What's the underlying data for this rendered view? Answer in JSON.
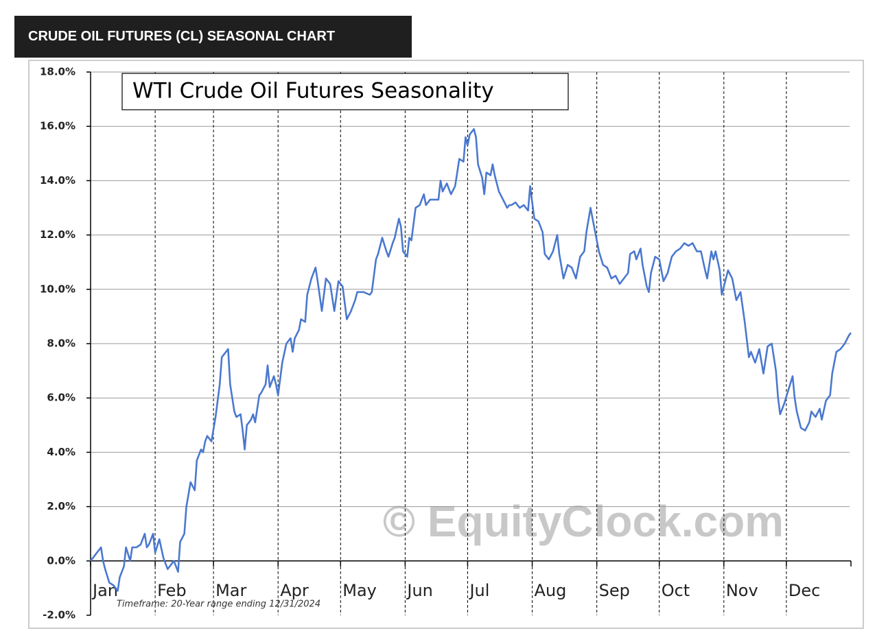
{
  "header": {
    "title": "CRUDE OIL FUTURES (CL) SEASONAL CHART"
  },
  "chart_data": {
    "type": "line",
    "title": "WTI Crude Oil Futures Seasonality",
    "annotations": [
      "Timeframe:  20-Year range ending 12/31/2024",
      "© EquityClock.com"
    ],
    "x": [
      1,
      4,
      6,
      7,
      8,
      10,
      12,
      14,
      15,
      17,
      18,
      20,
      21,
      23,
      25,
      27,
      28,
      29,
      31,
      32,
      34,
      36,
      38,
      41,
      43,
      44,
      46,
      47,
      49,
      51,
      52,
      54,
      55,
      56,
      57,
      59,
      61,
      63,
      64,
      66,
      67,
      68,
      70,
      71,
      73,
      74,
      75,
      76,
      78,
      79,
      80,
      82,
      83,
      85,
      86,
      87,
      89,
      90,
      91,
      93,
      95,
      97,
      98,
      99,
      101,
      102,
      104,
      105,
      107,
      109,
      110,
      112,
      114,
      116,
      118,
      120,
      122,
      124,
      126,
      128,
      129,
      132,
      135,
      136,
      138,
      139,
      141,
      143,
      144,
      146,
      147,
      149,
      150,
      151,
      153,
      154,
      155,
      157,
      159,
      161,
      162,
      164,
      166,
      168,
      169,
      170,
      172,
      174,
      176,
      177,
      178,
      180,
      181,
      182,
      183,
      185,
      186,
      187,
      189,
      190,
      191,
      193,
      194,
      195,
      197,
      199,
      201,
      202,
      203,
      205,
      207,
      209,
      211,
      212,
      214,
      216,
      218,
      219,
      221,
      223,
      225,
      226,
      228,
      230,
      232,
      234,
      236,
      238,
      239,
      241,
      243,
      245,
      247,
      249,
      251,
      253,
      255,
      257,
      259,
      260,
      262,
      263,
      265,
      266,
      268,
      269,
      270,
      272,
      274,
      276,
      278,
      280,
      282,
      284,
      286,
      288,
      290,
      292,
      294,
      296,
      297,
      299,
      300,
      301,
      303,
      304,
      305,
      307,
      309,
      311,
      313,
      315,
      317,
      318,
      320,
      322,
      324,
      326,
      328,
      330,
      331,
      332,
      334,
      336,
      338,
      339,
      340,
      342,
      344,
      346,
      347,
      349,
      351,
      352,
      354,
      356,
      357,
      359,
      361,
      363,
      365,
      366
    ],
    "series": [
      {
        "color": "#4a78cf",
        "values": [
          0,
          0.3,
          0.5,
          0,
          -0.3,
          -0.8,
          -0.9,
          -1.1,
          -0.6,
          -0.2,
          0.5,
          0,
          0.5,
          0.5,
          0.6,
          1.0,
          0.5,
          0.6,
          1.0,
          0.3,
          0.8,
          0.1,
          -0.3,
          0,
          -0.4,
          0.7,
          1.0,
          2.0,
          2.9,
          2.6,
          3.7,
          4.1,
          4.0,
          4.4,
          4.6,
          4.4,
          5.3,
          6.5,
          7.5,
          7.7,
          7.8,
          6.5,
          5.5,
          5.3,
          5.4,
          4.8,
          4.1,
          5.0,
          5.2,
          5.4,
          5.1,
          6.1,
          6.2,
          6.5,
          7.2,
          6.4,
          6.8,
          6.5,
          6.1,
          7.3,
          8.0,
          8.2,
          7.7,
          8.2,
          8.5,
          8.9,
          8.8,
          9.8,
          10.4,
          10.8,
          10.3,
          9.2,
          10.4,
          10.2,
          9.2,
          10.3,
          10.1,
          8.9,
          9.2,
          9.6,
          9.9,
          9.9,
          9.8,
          9.9,
          11.1,
          11.3,
          11.9,
          11.4,
          11.2,
          11.7,
          11.9,
          12.6,
          12.3,
          11.4,
          11.2,
          11.9,
          11.8,
          13.0,
          13.1,
          13.5,
          13.1,
          13.3,
          13.3,
          13.3,
          14.0,
          13.6,
          13.9,
          13.5,
          13.8,
          14.3,
          14.8,
          14.7,
          15.6,
          15.3,
          15.7,
          15.9,
          15.6,
          14.6,
          14.1,
          13.5,
          14.3,
          14.2,
          14.6,
          14.2,
          13.6,
          13.3,
          13.0,
          13.1,
          13.1,
          13.2,
          13.0,
          13.1,
          12.9,
          13.8,
          12.6,
          12.5,
          12.1,
          11.3,
          11.1,
          11.4,
          12.0,
          11.3,
          10.4,
          10.9,
          10.8,
          10.4,
          11.2,
          11.4,
          12.1,
          13.0,
          12.2,
          11.4,
          10.9,
          10.8,
          10.4,
          10.5,
          10.2,
          10.4,
          10.6,
          11.3,
          11.4,
          11.1,
          11.5,
          10.9,
          10.1,
          9.9,
          10.6,
          11.2,
          11.1,
          10.3,
          10.6,
          11.2,
          11.4,
          11.5,
          11.7,
          11.6,
          11.7,
          11.4,
          11.4,
          10.7,
          10.4,
          11.4,
          11.1,
          11.4,
          10.7,
          9.8,
          10.1,
          10.7,
          10.4,
          9.6,
          9.9,
          8.8,
          7.5,
          7.7,
          7.3,
          7.8,
          6.9,
          7.9,
          8.0,
          7.0,
          6.0,
          5.4,
          5.8,
          6.3,
          6.8,
          6.0,
          5.5,
          4.9,
          4.8,
          5.1,
          5.5,
          5.3,
          5.6,
          5.2,
          5.9,
          6.1,
          6.9,
          7.7,
          7.8,
          8.0,
          8.3,
          8.4
        ]
      }
    ],
    "xlim": [
      1,
      366
    ],
    "xticks": [
      {
        "value": 1,
        "label": "Jan"
      },
      {
        "value": 32,
        "label": "Feb"
      },
      {
        "value": 60,
        "label": "Mar"
      },
      {
        "value": 91,
        "label": "Apr"
      },
      {
        "value": 121,
        "label": "May"
      },
      {
        "value": 152,
        "label": "Jun"
      },
      {
        "value": 182,
        "label": "Jul"
      },
      {
        "value": 213,
        "label": "Aug"
      },
      {
        "value": 244,
        "label": "Sep"
      },
      {
        "value": 274,
        "label": "Oct"
      },
      {
        "value": 305,
        "label": "Nov"
      },
      {
        "value": 335,
        "label": "Dec"
      }
    ],
    "ylim": [
      -2,
      18
    ],
    "yticks": [
      {
        "value": -2,
        "label": "-2.0%"
      },
      {
        "value": 0,
        "label": "0.0%"
      },
      {
        "value": 2,
        "label": "2.0%"
      },
      {
        "value": 4,
        "label": "4.0%"
      },
      {
        "value": 6,
        "label": "6.0%"
      },
      {
        "value": 8,
        "label": "8.0%"
      },
      {
        "value": 10,
        "label": "10.0%"
      },
      {
        "value": 12,
        "label": "12.0%"
      },
      {
        "value": 14,
        "label": "14.0%"
      },
      {
        "value": 16,
        "label": "16.0%"
      },
      {
        "value": 18,
        "label": "18.0%"
      }
    ],
    "grid": true
  }
}
